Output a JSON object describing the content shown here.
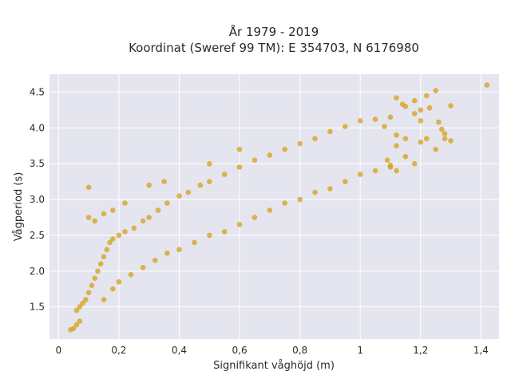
{
  "chart_data": {
    "type": "scatter",
    "title_lines": [
      "År 1979 - 2019",
      "Koordinat (Sweref 99 TM): E 354703, N 6176980"
    ],
    "xlabel": "Signifikant våghöjd (m)",
    "ylabel": "Vågperiod (s)",
    "xlim": [
      -0.03,
      1.46
    ],
    "ylim": [
      1.05,
      4.75
    ],
    "x_ticks": [
      0,
      0.2,
      0.4,
      0.6,
      0.8,
      1.0,
      1.2,
      1.4
    ],
    "x_tick_labels": [
      "0",
      "0,2",
      "0,4",
      "0,6",
      "0,8",
      "1",
      "1,2",
      "1,4"
    ],
    "y_ticks": [
      1.5,
      2.0,
      2.5,
      3.0,
      3.5,
      4.0,
      4.5
    ],
    "y_tick_labels": [
      "1.5",
      "2.0",
      "2.5",
      "3.0",
      "3.5",
      "4.0",
      "4.5"
    ],
    "grid": true,
    "legend": "none",
    "marker_color": "#D4A017",
    "plot_bgcolor": "#E5E5EF",
    "points": [
      [
        0.04,
        1.18
      ],
      [
        0.05,
        1.2
      ],
      [
        0.06,
        1.25
      ],
      [
        0.07,
        1.3
      ],
      [
        0.06,
        1.45
      ],
      [
        0.07,
        1.5
      ],
      [
        0.08,
        1.55
      ],
      [
        0.09,
        1.6
      ],
      [
        0.1,
        1.7
      ],
      [
        0.11,
        1.8
      ],
      [
        0.12,
        1.9
      ],
      [
        0.13,
        2.0
      ],
      [
        0.14,
        2.1
      ],
      [
        0.15,
        2.2
      ],
      [
        0.16,
        2.3
      ],
      [
        0.17,
        2.4
      ],
      [
        0.18,
        2.45
      ],
      [
        0.2,
        2.5
      ],
      [
        0.22,
        2.55
      ],
      [
        0.25,
        2.6
      ],
      [
        0.28,
        2.7
      ],
      [
        0.3,
        2.75
      ],
      [
        0.33,
        2.85
      ],
      [
        0.36,
        2.95
      ],
      [
        0.4,
        3.05
      ],
      [
        0.43,
        3.1
      ],
      [
        0.47,
        3.2
      ],
      [
        0.5,
        3.25
      ],
      [
        0.55,
        3.35
      ],
      [
        0.6,
        3.45
      ],
      [
        0.65,
        3.55
      ],
      [
        0.7,
        3.62
      ],
      [
        0.75,
        3.7
      ],
      [
        0.8,
        3.78
      ],
      [
        0.85,
        3.85
      ],
      [
        0.9,
        3.95
      ],
      [
        0.95,
        4.02
      ],
      [
        1.0,
        4.1
      ],
      [
        1.05,
        4.12
      ],
      [
        1.1,
        4.15
      ],
      [
        0.15,
        1.6
      ],
      [
        0.18,
        1.75
      ],
      [
        0.2,
        1.85
      ],
      [
        0.24,
        1.95
      ],
      [
        0.28,
        2.05
      ],
      [
        0.32,
        2.15
      ],
      [
        0.36,
        2.25
      ],
      [
        0.4,
        2.3
      ],
      [
        0.45,
        2.4
      ],
      [
        0.5,
        2.5
      ],
      [
        0.55,
        2.55
      ],
      [
        0.6,
        2.65
      ],
      [
        0.65,
        2.75
      ],
      [
        0.7,
        2.85
      ],
      [
        0.75,
        2.95
      ],
      [
        0.8,
        3.0
      ],
      [
        0.85,
        3.1
      ],
      [
        0.9,
        3.15
      ],
      [
        0.95,
        3.25
      ],
      [
        1.0,
        3.35
      ],
      [
        1.05,
        3.4
      ],
      [
        1.1,
        3.45
      ],
      [
        0.1,
        3.17
      ],
      [
        0.1,
        2.75
      ],
      [
        0.12,
        2.7
      ],
      [
        0.15,
        2.8
      ],
      [
        0.18,
        2.85
      ],
      [
        0.22,
        2.95
      ],
      [
        0.3,
        3.2
      ],
      [
        0.35,
        3.25
      ],
      [
        0.5,
        3.5
      ],
      [
        0.6,
        3.7
      ],
      [
        1.08,
        4.02
      ],
      [
        1.12,
        3.9
      ],
      [
        1.15,
        3.85
      ],
      [
        1.12,
        3.75
      ],
      [
        1.15,
        3.6
      ],
      [
        1.18,
        3.5
      ],
      [
        1.2,
        3.8
      ],
      [
        1.22,
        3.85
      ],
      [
        1.25,
        3.7
      ],
      [
        1.28,
        3.85
      ],
      [
        1.3,
        3.82
      ],
      [
        1.27,
        3.98
      ],
      [
        1.2,
        4.1
      ],
      [
        1.18,
        4.2
      ],
      [
        1.15,
        4.3
      ],
      [
        1.12,
        4.42
      ],
      [
        1.14,
        4.33
      ],
      [
        1.18,
        4.38
      ],
      [
        1.2,
        4.25
      ],
      [
        1.22,
        4.45
      ],
      [
        1.23,
        4.28
      ],
      [
        1.25,
        4.52
      ],
      [
        1.26,
        4.08
      ],
      [
        1.28,
        3.92
      ],
      [
        1.3,
        4.31
      ],
      [
        1.42,
        4.6
      ],
      [
        1.1,
        3.48
      ],
      [
        1.12,
        3.4
      ],
      [
        1.09,
        3.55
      ]
    ]
  }
}
